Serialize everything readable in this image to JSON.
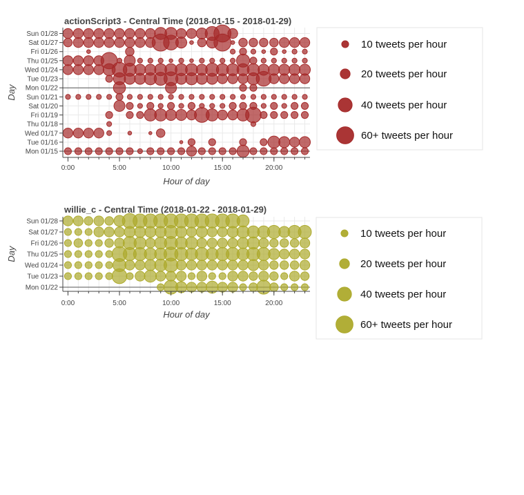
{
  "chart_data": [
    {
      "type": "scatter",
      "title": "actionScript3 - Central Time (2018-01-15 - 2018-01-29)",
      "xlabel": "Hour of day",
      "ylabel": "Day",
      "color": "#a52a2a",
      "xlim": [
        -0.5,
        23.5
      ],
      "xticks": [
        0,
        5,
        10,
        15,
        20
      ],
      "xtick_labels": [
        "0:00",
        "5:00",
        "10:00",
        "15:00",
        "20:00"
      ],
      "days": [
        "Mon 01/15",
        "Tue 01/16",
        "Wed 01/17",
        "Thu 01/18",
        "Fri 01/19",
        "Sat 01/20",
        "Sun 01/21",
        "Mon 01/22",
        "Tue 01/23",
        "Wed 01/24",
        "Thu 01/25",
        "Fri 01/26",
        "Sat 01/27",
        "Sun 01/28"
      ],
      "counts": [
        [
          10,
          10,
          10,
          10,
          10,
          10,
          10,
          5,
          10,
          10,
          10,
          10,
          20,
          10,
          10,
          10,
          10,
          30,
          10,
          10,
          10,
          10,
          10,
          10
        ],
        [
          0,
          0,
          0,
          0,
          0,
          0,
          0,
          0,
          0,
          0,
          0,
          2,
          10,
          0,
          10,
          0,
          0,
          10,
          0,
          10,
          30,
          25,
          20,
          25
        ],
        [
          20,
          20,
          20,
          20,
          5,
          0,
          3,
          0,
          2,
          15,
          0,
          0,
          0,
          0,
          0,
          0,
          0,
          0,
          0,
          0,
          0,
          0,
          0,
          0
        ],
        [
          0,
          0,
          0,
          0,
          5,
          0,
          0,
          0,
          0,
          0,
          0,
          0,
          0,
          0,
          0,
          0,
          0,
          0,
          5,
          0,
          0,
          0,
          0,
          0
        ],
        [
          0,
          0,
          0,
          0,
          10,
          0,
          10,
          10,
          30,
          30,
          25,
          25,
          20,
          45,
          30,
          20,
          20,
          30,
          50,
          10,
          10,
          10,
          10,
          10
        ],
        [
          0,
          0,
          0,
          0,
          0,
          25,
          10,
          5,
          10,
          5,
          10,
          5,
          10,
          5,
          5,
          5,
          10,
          10,
          10,
          5,
          10,
          5,
          10,
          10
        ],
        [
          5,
          5,
          5,
          5,
          5,
          10,
          5,
          5,
          5,
          5,
          5,
          5,
          5,
          5,
          5,
          5,
          5,
          5,
          5,
          5,
          5,
          5,
          5,
          5
        ],
        [
          0,
          0,
          0,
          0,
          0,
          30,
          0,
          0,
          0,
          0,
          25,
          0,
          0,
          0,
          0,
          0,
          0,
          10,
          10,
          0,
          0,
          0,
          0,
          0
        ],
        [
          0,
          0,
          0,
          0,
          10,
          30,
          25,
          25,
          30,
          35,
          40,
          25,
          30,
          25,
          25,
          20,
          20,
          20,
          30,
          45,
          20,
          20,
          20,
          20
        ],
        [
          20,
          20,
          20,
          20,
          30,
          45,
          35,
          25,
          25,
          30,
          30,
          30,
          30,
          25,
          35,
          30,
          30,
          30,
          30,
          25,
          25,
          25,
          25,
          25
        ],
        [
          20,
          20,
          20,
          20,
          55,
          5,
          25,
          5,
          5,
          5,
          3,
          5,
          3,
          5,
          5,
          5,
          5,
          35,
          10,
          5,
          5,
          5,
          5,
          5
        ],
        [
          0,
          0,
          3,
          0,
          0,
          0,
          15,
          0,
          0,
          0,
          0,
          0,
          0,
          0,
          0,
          0,
          5,
          10,
          5,
          3,
          10,
          3,
          5,
          5
        ],
        [
          15,
          20,
          20,
          20,
          20,
          20,
          20,
          20,
          20,
          60,
          45,
          25,
          3,
          15,
          25,
          60,
          3,
          15,
          15,
          15,
          15,
          20,
          20,
          20
        ],
        [
          20,
          20,
          20,
          20,
          20,
          20,
          20,
          20,
          20,
          30,
          30,
          20,
          20,
          25,
          40,
          60,
          20,
          0,
          0,
          0,
          0,
          0,
          0,
          0
        ]
      ],
      "legend": {
        "placement": "right",
        "entries": [
          {
            "label": "10 tweets per hour",
            "value": 10
          },
          {
            "label": "20 tweets per hour",
            "value": 20
          },
          {
            "label": "40 tweets per hour",
            "value": 40
          },
          {
            "label": "60+ tweets per hour",
            "value": 60
          }
        ]
      }
    },
    {
      "type": "scatter",
      "title": "willie_c - Central Time (2018-01-22 - 2018-01-29)",
      "xlabel": "Hour of day",
      "ylabel": "Day",
      "color": "#adaa2c",
      "xlim": [
        -0.5,
        23.5
      ],
      "xticks": [
        0,
        5,
        10,
        15,
        20
      ],
      "xtick_labels": [
        "0:00",
        "5:00",
        "10:00",
        "15:00",
        "20:00"
      ],
      "days": [
        "Mon 01/22",
        "Tue 01/23",
        "Wed 01/24",
        "Thu 01/25",
        "Fri 01/26",
        "Sat 01/27",
        "Sun 01/28"
      ],
      "counts": [
        [
          0,
          0,
          0,
          0,
          0,
          0,
          0,
          0,
          0,
          10,
          40,
          25,
          20,
          20,
          30,
          20,
          20,
          10,
          15,
          40,
          15,
          10,
          10,
          10
        ],
        [
          10,
          10,
          10,
          10,
          10,
          45,
          10,
          20,
          30,
          20,
          20,
          20,
          10,
          20,
          10,
          10,
          20,
          20,
          15,
          20,
          15,
          10,
          20,
          15
        ],
        [
          10,
          10,
          10,
          10,
          10,
          35,
          20,
          20,
          25,
          30,
          40,
          20,
          20,
          20,
          20,
          20,
          20,
          20,
          25,
          20,
          15,
          15,
          15,
          20
        ],
        [
          10,
          10,
          10,
          10,
          10,
          45,
          35,
          35,
          30,
          30,
          40,
          35,
          30,
          35,
          30,
          35,
          35,
          30,
          35,
          35,
          25,
          20,
          20,
          20
        ],
        [
          10,
          15,
          10,
          10,
          15,
          20,
          35,
          30,
          20,
          30,
          35,
          30,
          30,
          20,
          20,
          20,
          20,
          25,
          30,
          20,
          15,
          15,
          15,
          20
        ],
        [
          10,
          10,
          10,
          20,
          20,
          20,
          25,
          25,
          25,
          25,
          35,
          25,
          20,
          25,
          20,
          20,
          25,
          30,
          30,
          30,
          35,
          25,
          35,
          35
        ],
        [
          20,
          20,
          15,
          20,
          15,
          25,
          45,
          40,
          40,
          40,
          40,
          40,
          40,
          40,
          40,
          40,
          40,
          30,
          0,
          0,
          0,
          0,
          0,
          0
        ]
      ],
      "legend": {
        "placement": "right",
        "entries": [
          {
            "label": "10 tweets per hour",
            "value": 10
          },
          {
            "label": "20 tweets per hour",
            "value": 20
          },
          {
            "label": "40 tweets per hour",
            "value": 40
          },
          {
            "label": "60+ tweets per hour",
            "value": 60
          }
        ]
      }
    }
  ]
}
